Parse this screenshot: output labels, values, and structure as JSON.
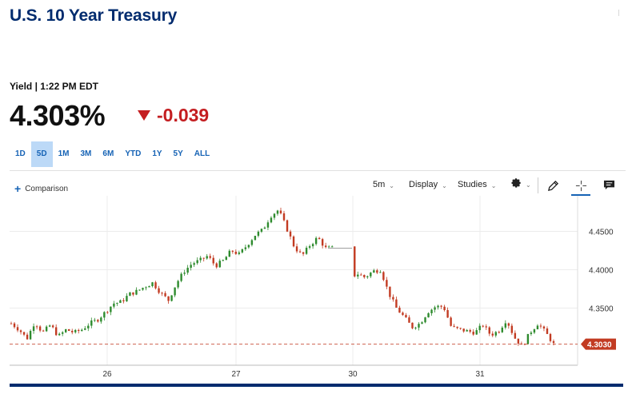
{
  "header": {
    "title": "U.S. 10 Year Treasury"
  },
  "quote": {
    "yield_label": "Yield | 1:22 PM EDT",
    "price": "4.303%",
    "change": "-0.039"
  },
  "ranges": [
    {
      "label": "1D"
    },
    {
      "label": "5D"
    },
    {
      "label": "1M"
    },
    {
      "label": "3M"
    },
    {
      "label": "6M"
    },
    {
      "label": "YTD"
    },
    {
      "label": "1Y"
    },
    {
      "label": "5Y"
    },
    {
      "label": "ALL"
    }
  ],
  "active_range": "5D",
  "toolbar": {
    "comparison_label": "Comparison",
    "interval_label": "5m",
    "display_label": "Display",
    "studies_label": "Studies"
  },
  "colors": {
    "up": "#2e8b2e",
    "down": "#c23b22",
    "last_price_tag": "#c23b22",
    "brand": "#002b6e",
    "accent": "#1663b5"
  },
  "chart_data": {
    "type": "line",
    "title": "",
    "xlabel": "",
    "ylabel": "",
    "x_ticks": [
      "26",
      "27",
      "30",
      "31"
    ],
    "y_ticks": [
      "4.3500",
      "4.4000",
      "4.4500"
    ],
    "ylim": [
      4.2755,
      4.488
    ],
    "last_value_label": "4.3030",
    "last_value": 4.303,
    "series": [
      {
        "values": [
          4.33,
          4.322,
          4.31,
          4.332,
          4.318,
          4.328,
          4.313,
          4.322,
          4.318,
          4.322,
          4.33,
          4.335,
          4.345,
          4.356,
          4.358,
          4.368,
          4.372,
          4.378,
          4.383,
          4.37,
          4.36,
          4.382,
          4.398,
          4.408,
          4.412,
          4.418,
          4.405,
          4.412,
          4.425,
          4.42,
          4.432,
          4.445,
          4.452,
          4.47,
          4.478,
          4.455,
          4.43,
          4.418,
          4.432,
          4.442,
          4.428,
          4.428,
          4.392,
          4.388,
          4.395,
          4.39,
          4.398,
          4.4,
          4.37,
          4.35,
          4.338,
          4.325,
          4.33,
          4.345,
          4.352,
          4.352,
          4.325,
          4.322,
          4.32,
          4.318,
          4.328,
          4.315,
          4.32,
          4.335,
          4.312,
          4.3,
          4.318,
          4.33,
          4.318,
          4.303
        ]
      }
    ]
  }
}
